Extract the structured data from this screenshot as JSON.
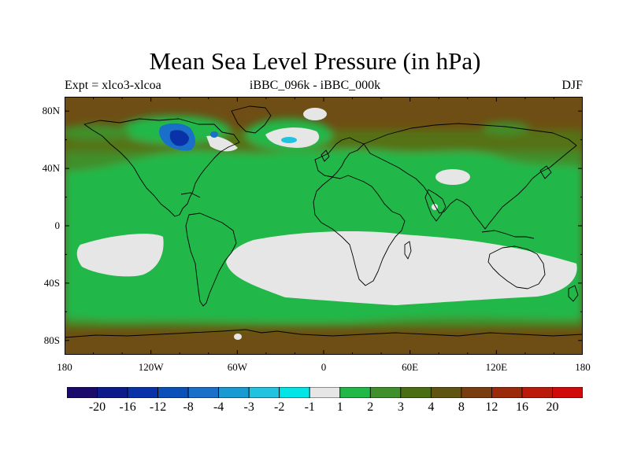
{
  "header": {
    "title": "Mean Sea Level Pressure (in hPa)",
    "left": "Expt = xlco3-xlcoa",
    "center": "iBBC_096k - iBBC_000k",
    "right": "DJF"
  },
  "axes": {
    "lat_labels": [
      "80N",
      "40N",
      "0",
      "40S",
      "80S"
    ],
    "lat_values": [
      80,
      40,
      0,
      -40,
      -80
    ],
    "lon_labels": [
      "180",
      "120W",
      "60W",
      "0",
      "60E",
      "120E",
      "180"
    ],
    "lon_values": [
      -180,
      -120,
      -60,
      0,
      60,
      120,
      180
    ]
  },
  "colorbar": {
    "labels": [
      "-20",
      "-16",
      "-12",
      "-8",
      "-4",
      "-3",
      "-2",
      "-1",
      "1",
      "2",
      "3",
      "4",
      "8",
      "12",
      "16",
      "20"
    ],
    "colors": [
      "#1a0a6b",
      "#0d1a8a",
      "#0a32a8",
      "#0b4fb8",
      "#1a70c8",
      "#1a9ad2",
      "#22c3e0",
      "#00e5e5",
      "#e6e6e6",
      "#22b848",
      "#3f8f2a",
      "#4a6e12",
      "#5f5412",
      "#7a3e0e",
      "#9a2a0a",
      "#ba1a0a",
      "#d00a0a"
    ]
  },
  "map": {
    "lat_range": [
      -90,
      90
    ],
    "lon_range": [
      -180,
      180
    ],
    "colors": {
      "brown": "#6e4e14",
      "olive": "#557212",
      "darkgreen": "#3f8f2a",
      "green": "#22b848",
      "white": "#e6e6e6",
      "blue": "#0a32a8",
      "medblue": "#1a70c8",
      "cyan": "#22c3e0"
    }
  }
}
